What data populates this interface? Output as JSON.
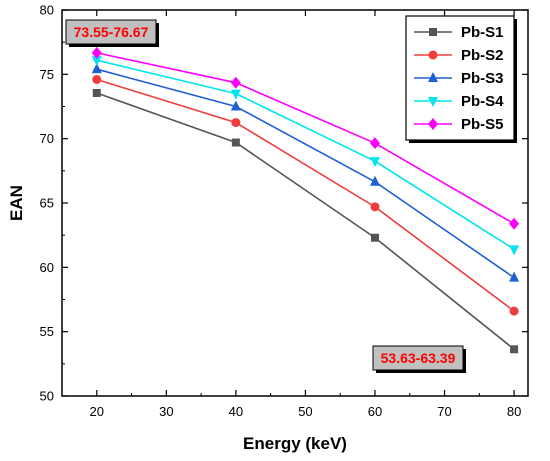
{
  "chart_data": {
    "type": "line",
    "xlabel": "Energy (keV)",
    "ylabel": "EAN",
    "x": [
      20,
      40,
      60,
      80
    ],
    "xlim": [
      15,
      82
    ],
    "ylim": [
      50,
      80
    ],
    "xticks": [
      20,
      30,
      40,
      50,
      60,
      70,
      80
    ],
    "yticks": [
      50,
      55,
      60,
      65,
      70,
      75,
      80
    ],
    "grid": false,
    "legend_position": "top-right",
    "series": [
      {
        "name": "Pb-S1",
        "color": "#555555",
        "marker": "square",
        "values": [
          73.55,
          69.7,
          62.3,
          53.63
        ]
      },
      {
        "name": "Pb-S2",
        "color": "#f03c3c",
        "marker": "circle",
        "values": [
          74.6,
          71.25,
          64.7,
          56.6
        ]
      },
      {
        "name": "Pb-S3",
        "color": "#1f5fd6",
        "marker": "triangle-up",
        "values": [
          75.4,
          72.5,
          66.65,
          59.2
        ]
      },
      {
        "name": "Pb-S4",
        "color": "#00e5ee",
        "marker": "triangle-down",
        "values": [
          76.1,
          73.5,
          68.25,
          61.4
        ]
      },
      {
        "name": "Pb-S5",
        "color": "#ff00ff",
        "marker": "diamond",
        "values": [
          76.67,
          74.35,
          69.65,
          63.39
        ]
      }
    ],
    "annotations": [
      {
        "text": "73.55-76.67",
        "position": "top-left",
        "text_color": "#ff0000",
        "box_color": "#c0c0c0"
      },
      {
        "text": "53.63-63.39",
        "position": "bottom-right",
        "text_color": "#ff0000",
        "box_color": "#c0c0c0"
      }
    ]
  }
}
